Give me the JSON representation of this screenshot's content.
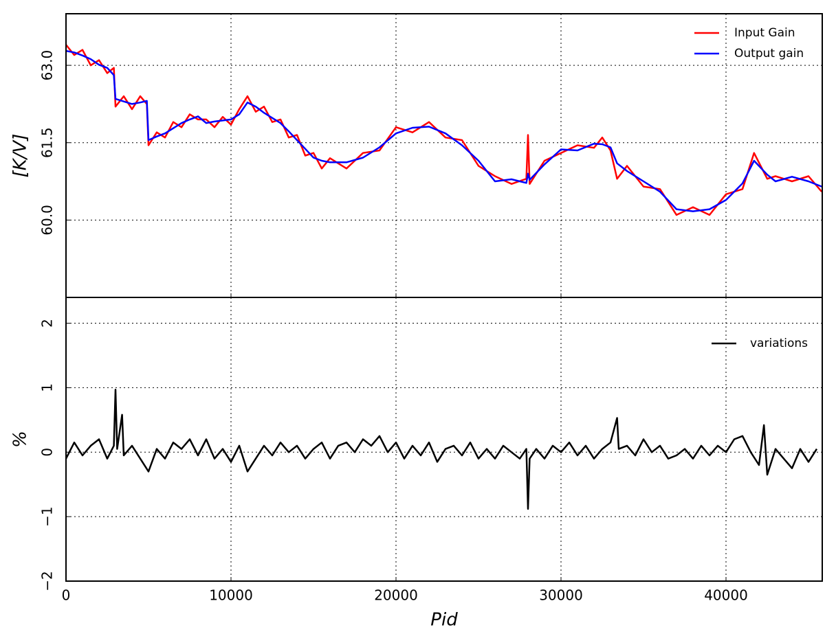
{
  "chart_data": [
    {
      "type": "line",
      "ylabel": "[K/V]",
      "legend": "upper right",
      "grid": true,
      "xlim": [
        0,
        45833
      ],
      "ylim": [
        58.5,
        64.0
      ],
      "xticks": [
        0,
        10000,
        20000,
        30000,
        40000
      ],
      "yticks": [
        {
          "value": 60,
          "label": "60.0"
        },
        61.5,
        {
          "value": 63,
          "label": "63.0"
        }
      ],
      "x": [
        0,
        500,
        1000,
        1500,
        2000,
        2500,
        2900,
        3000,
        3500,
        4000,
        4500,
        4900,
        5000,
        5500,
        6000,
        6500,
        7000,
        7500,
        8000,
        8500,
        9000,
        9500,
        10000,
        10500,
        11000,
        11500,
        12000,
        12500,
        13000,
        13500,
        14000,
        14500,
        15000,
        15500,
        16000,
        17000,
        18000,
        19000,
        20000,
        21000,
        22000,
        23000,
        24000,
        25000,
        26000,
        27000,
        27900,
        28000,
        28100,
        29000,
        30000,
        31000,
        32000,
        32500,
        33000,
        33400,
        34000,
        35000,
        36000,
        37000,
        38000,
        39000,
        40000,
        41000,
        41700,
        42500,
        43000,
        44000,
        45000,
        45800
      ],
      "series": [
        {
          "name": "Input Gain",
          "color": "#ff0000",
          "values": [
            63.4,
            63.2,
            63.3,
            63.0,
            63.1,
            62.85,
            62.95,
            62.2,
            62.4,
            62.15,
            62.4,
            62.25,
            61.45,
            61.7,
            61.6,
            61.9,
            61.8,
            62.05,
            61.95,
            61.95,
            61.8,
            62.0,
            61.85,
            62.15,
            62.4,
            62.1,
            62.2,
            61.9,
            61.95,
            61.6,
            61.65,
            61.25,
            61.3,
            61.0,
            61.2,
            61.0,
            61.3,
            61.35,
            61.8,
            61.7,
            61.9,
            61.6,
            61.55,
            61.05,
            60.85,
            60.7,
            60.8,
            61.65,
            60.7,
            61.15,
            61.3,
            61.45,
            61.4,
            61.6,
            61.35,
            60.8,
            61.05,
            60.65,
            60.6,
            60.1,
            60.25,
            60.1,
            60.5,
            60.6,
            61.3,
            60.8,
            60.85,
            60.75,
            60.85,
            60.55
          ]
        },
        {
          "name": "Output gain",
          "color": "#0000ff",
          "values": [
            63.28,
            63.25,
            63.19,
            63.12,
            63.01,
            62.95,
            62.81,
            62.35,
            62.3,
            62.25,
            62.28,
            62.31,
            61.55,
            61.62,
            61.68,
            61.78,
            61.88,
            61.95,
            62.01,
            61.88,
            61.91,
            61.93,
            61.95,
            62.05,
            62.28,
            62.2,
            62.08,
            61.98,
            61.88,
            61.72,
            61.55,
            61.38,
            61.21,
            61.15,
            61.12,
            61.12,
            61.21,
            61.41,
            61.68,
            61.79,
            61.81,
            61.68,
            61.45,
            61.15,
            60.75,
            60.79,
            60.72,
            60.9,
            60.78,
            61.08,
            61.37,
            61.35,
            61.48,
            61.47,
            61.41,
            61.1,
            60.95,
            60.75,
            60.55,
            60.21,
            60.17,
            60.21,
            60.39,
            60.71,
            61.15,
            60.88,
            60.75,
            60.84,
            60.75,
            60.65
          ]
        }
      ]
    },
    {
      "type": "line",
      "xlabel": "Pid",
      "ylabel": "%",
      "legend": "upper right",
      "grid": true,
      "xlim": [
        0,
        45833
      ],
      "ylim": [
        -2,
        2.4
      ],
      "xticks": [
        0,
        10000,
        20000,
        30000,
        40000
      ],
      "yticks": [
        {
          "value": -2,
          "label": "−2"
        },
        {
          "value": -1,
          "label": "−1"
        },
        0,
        1,
        2
      ],
      "x": [
        0,
        500,
        1000,
        1500,
        2000,
        2500,
        2900,
        3000,
        3100,
        3400,
        3500,
        4000,
        4500,
        5000,
        5500,
        6000,
        6500,
        7000,
        7500,
        8000,
        8500,
        9000,
        9500,
        10000,
        10500,
        11000,
        11500,
        12000,
        12500,
        13000,
        13500,
        14000,
        14500,
        15000,
        15500,
        16000,
        16500,
        17000,
        17500,
        18000,
        18500,
        19000,
        19500,
        20000,
        20500,
        21000,
        21500,
        22000,
        22500,
        23000,
        23500,
        24000,
        24500,
        25000,
        25500,
        26000,
        26500,
        27000,
        27500,
        27900,
        28000,
        28100,
        28500,
        29000,
        29500,
        30000,
        30500,
        31000,
        31500,
        32000,
        32500,
        33000,
        33400,
        33500,
        34000,
        34500,
        35000,
        35500,
        36000,
        36500,
        37000,
        37500,
        38000,
        38500,
        39000,
        39500,
        40000,
        40500,
        41000,
        41500,
        42000,
        42300,
        42500,
        43000,
        43500,
        44000,
        44500,
        45000,
        45500
      ],
      "series": [
        {
          "name": "variations",
          "color": "#000000",
          "values": [
            -0.1,
            0.15,
            -0.05,
            0.1,
            0.2,
            -0.1,
            0.1,
            0.97,
            0.05,
            0.58,
            -0.05,
            0.1,
            -0.1,
            -0.3,
            0.05,
            -0.1,
            0.15,
            0.05,
            0.2,
            -0.05,
            0.2,
            -0.1,
            0.05,
            -0.15,
            0.1,
            -0.3,
            -0.1,
            0.1,
            -0.05,
            0.15,
            0,
            0.1,
            -0.1,
            0.05,
            0.15,
            -0.1,
            0.1,
            0.15,
            0,
            0.2,
            0.1,
            0.25,
            0,
            0.15,
            -0.1,
            0.1,
            -0.05,
            0.15,
            -0.15,
            0.05,
            0.1,
            -0.05,
            0.15,
            -0.1,
            0.05,
            -0.1,
            0.1,
            0,
            -0.1,
            0.05,
            -0.88,
            -0.1,
            0.05,
            -0.1,
            0.1,
            0,
            0.15,
            -0.05,
            0.1,
            -0.1,
            0.05,
            0.15,
            0.53,
            0.05,
            0.1,
            -0.05,
            0.2,
            0,
            0.1,
            -0.1,
            -0.05,
            0.05,
            -0.1,
            0.1,
            -0.05,
            0.1,
            0,
            0.2,
            0.25,
            0,
            -0.2,
            0.42,
            -0.35,
            0.05,
            -0.1,
            -0.25,
            0.05,
            -0.15,
            0.05
          ]
        }
      ]
    }
  ]
}
